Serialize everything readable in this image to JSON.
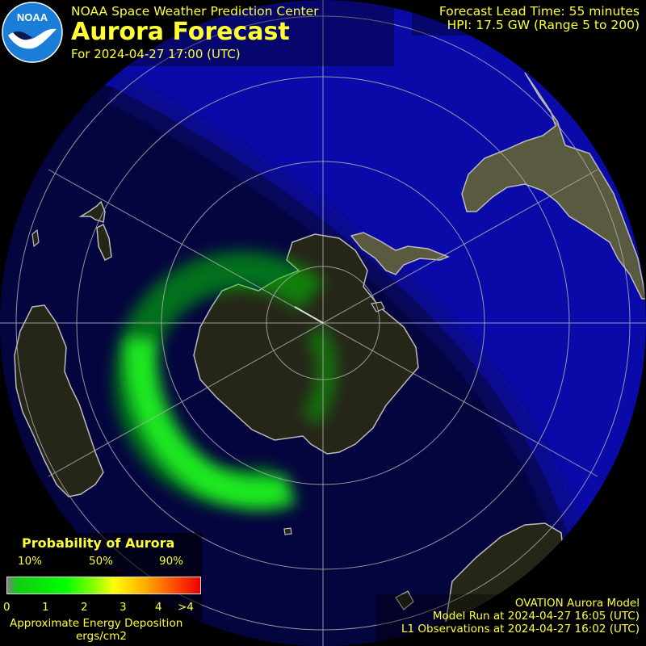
{
  "header": {
    "org": "NOAA Space Weather Prediction Center",
    "title": "Aurora Forecast",
    "forecast_for": "For 2024-04-27 17:00 (UTC)"
  },
  "logo": {
    "text": "NOAA",
    "icon": "noaa-bird-logo"
  },
  "forecast_info": {
    "lead_time": "Forecast Lead Time:  55 minutes",
    "hpi": "HPI:  17.5 GW (Range 5 to 200)"
  },
  "legend": {
    "title": "Probability of Aurora",
    "percent_labels": [
      "10%",
      "50%",
      "90%"
    ],
    "energy_labels": [
      "0",
      "1",
      "2",
      "3",
      "4",
      ">4"
    ],
    "units_line1": "Approximate Energy Deposition",
    "units_line2": "ergs/cm2",
    "colors": [
      "#808080",
      "#00ff00",
      "#ffff00",
      "#ffaa00",
      "#ee0000"
    ]
  },
  "model_info": {
    "model": "OVATION Aurora Model",
    "model_run": "Model Run at 2024-04-27 16:05 (UTC)",
    "observations": "L1 Observations at 2024-04-27 16:02 (UTC)"
  },
  "map": {
    "hemisphere": "south",
    "colors": {
      "ocean_day": "#0a0aa8",
      "ocean_night": "#04043e",
      "land": "#2a2a1a",
      "land_day": "#5a5a40",
      "aurora": "#00ff00",
      "grid": "#b0b0b0"
    }
  }
}
